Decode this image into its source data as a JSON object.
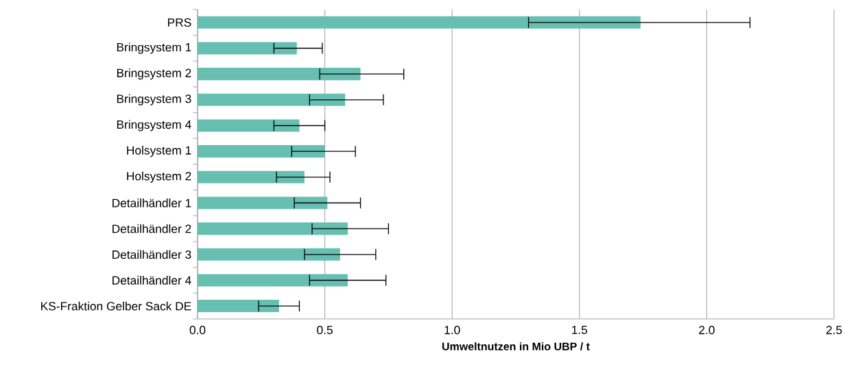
{
  "chart_data": {
    "type": "bar",
    "orientation": "horizontal",
    "xlabel": "Umweltnutzen in Mio UBP / t",
    "categories": [
      "PRS",
      "Bringsystem 1",
      "Bringsystem 2",
      "Bringsystem 3",
      "Bringsystem 4",
      "Holsystem 1",
      "Holsystem 2",
      "Detailhändler 1",
      "Detailhändler 2",
      "Detailhändler 3",
      "Detailhändler 4",
      "KS-Fraktion Gelber Sack DE"
    ],
    "values": [
      1.74,
      0.39,
      0.64,
      0.58,
      0.4,
      0.5,
      0.42,
      0.51,
      0.59,
      0.56,
      0.59,
      0.32
    ],
    "errors": [
      [
        1.3,
        2.17
      ],
      [
        0.3,
        0.49
      ],
      [
        0.48,
        0.81
      ],
      [
        0.44,
        0.73
      ],
      [
        0.3,
        0.5
      ],
      [
        0.37,
        0.62
      ],
      [
        0.31,
        0.52
      ],
      [
        0.38,
        0.64
      ],
      [
        0.45,
        0.75
      ],
      [
        0.42,
        0.7
      ],
      [
        0.44,
        0.74
      ],
      [
        0.24,
        0.4
      ]
    ],
    "color": "#67bfb2",
    "xlim": [
      0,
      2.5
    ],
    "xticks": [
      {
        "value": 0,
        "label": "0.0"
      },
      {
        "value": 0.5,
        "label": "0.5"
      },
      {
        "value": 1.0,
        "label": "1.0"
      },
      {
        "value": 1.5,
        "label": "1.5"
      },
      {
        "value": 2.0,
        "label": "2.0"
      },
      {
        "value": 2.5,
        "label": "2.5"
      }
    ],
    "grid": "x"
  }
}
